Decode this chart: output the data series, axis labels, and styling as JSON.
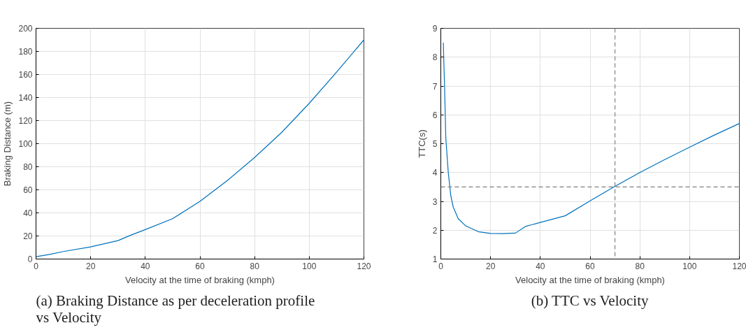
{
  "chart_data": [
    {
      "type": "line",
      "title": "(a) Braking Distance as per deceleration profile vs Velocity",
      "xlabel": "Velocity at the time of braking (kmph)",
      "ylabel": "Braking Distance (m)",
      "x": [
        0,
        5,
        10,
        20,
        30,
        35,
        40,
        50,
        60,
        70,
        80,
        90,
        100,
        110,
        120
      ],
      "series": [
        {
          "color": "#0072bd",
          "values": [
            2,
            4,
            6.5,
            10.5,
            16,
            21,
            25.5,
            35,
            50,
            68,
            88,
            110,
            135,
            162,
            190
          ]
        }
      ],
      "xlim": [
        0,
        120
      ],
      "xticks": [
        0,
        20,
        40,
        60,
        80,
        100,
        120
      ],
      "ylim": [
        0,
        200
      ],
      "yticks": [
        0,
        20,
        40,
        60,
        80,
        100,
        120,
        140,
        160,
        180,
        200
      ],
      "grid": true
    },
    {
      "type": "line",
      "title": "(b) TTC vs Velocity",
      "xlabel": "Velocity at the time of braking (kmph)",
      "ylabel": "TTC(s)",
      "x": [
        1,
        1.5,
        2,
        3,
        4,
        5,
        7,
        10,
        15,
        20,
        25,
        30,
        34,
        40,
        50,
        60,
        70,
        80,
        90,
        100,
        110,
        120
      ],
      "series": [
        {
          "color": "#0072bd",
          "values": [
            8.5,
            7,
            5.2,
            4,
            3.2,
            2.8,
            2.4,
            2.15,
            1.95,
            1.89,
            1.88,
            1.9,
            2.13,
            2.27,
            2.5,
            3.02,
            3.52,
            4.0,
            4.45,
            4.88,
            5.3,
            5.7
          ]
        }
      ],
      "xlim": [
        0,
        120
      ],
      "xticks": [
        0,
        20,
        40,
        60,
        80,
        100,
        120
      ],
      "ylim": [
        1,
        9
      ],
      "yticks": [
        1,
        2,
        3,
        4,
        5,
        6,
        7,
        8,
        9
      ],
      "grid": true,
      "ref_lines": [
        {
          "axis": "x",
          "value": 70,
          "color": "#808080",
          "line_style": "dashed"
        },
        {
          "axis": "y",
          "value": 3.5,
          "color": "#808080",
          "line_style": "dashed"
        }
      ]
    }
  ]
}
